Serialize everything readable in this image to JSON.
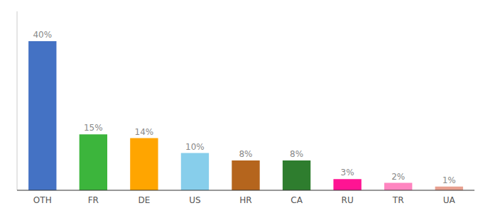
{
  "chart_data": {
    "type": "bar",
    "categories": [
      "OTH",
      "FR",
      "DE",
      "US",
      "HR",
      "CA",
      "RU",
      "TR",
      "UA"
    ],
    "values": [
      40,
      15,
      14,
      10,
      8,
      8,
      3,
      2,
      1
    ],
    "value_labels": [
      "40%",
      "15%",
      "14%",
      "10%",
      "8%",
      "8%",
      "3%",
      "2%",
      "1%"
    ],
    "colors": [
      "#4472c4",
      "#3cb53c",
      "#ffa500",
      "#87ceeb",
      "#b5651d",
      "#2e7d2e",
      "#ff1493",
      "#ff85c0",
      "#e8a090"
    ],
    "ylim": [
      0,
      48
    ],
    "data_labels": true,
    "tick_labels": "x",
    "grid": false
  }
}
